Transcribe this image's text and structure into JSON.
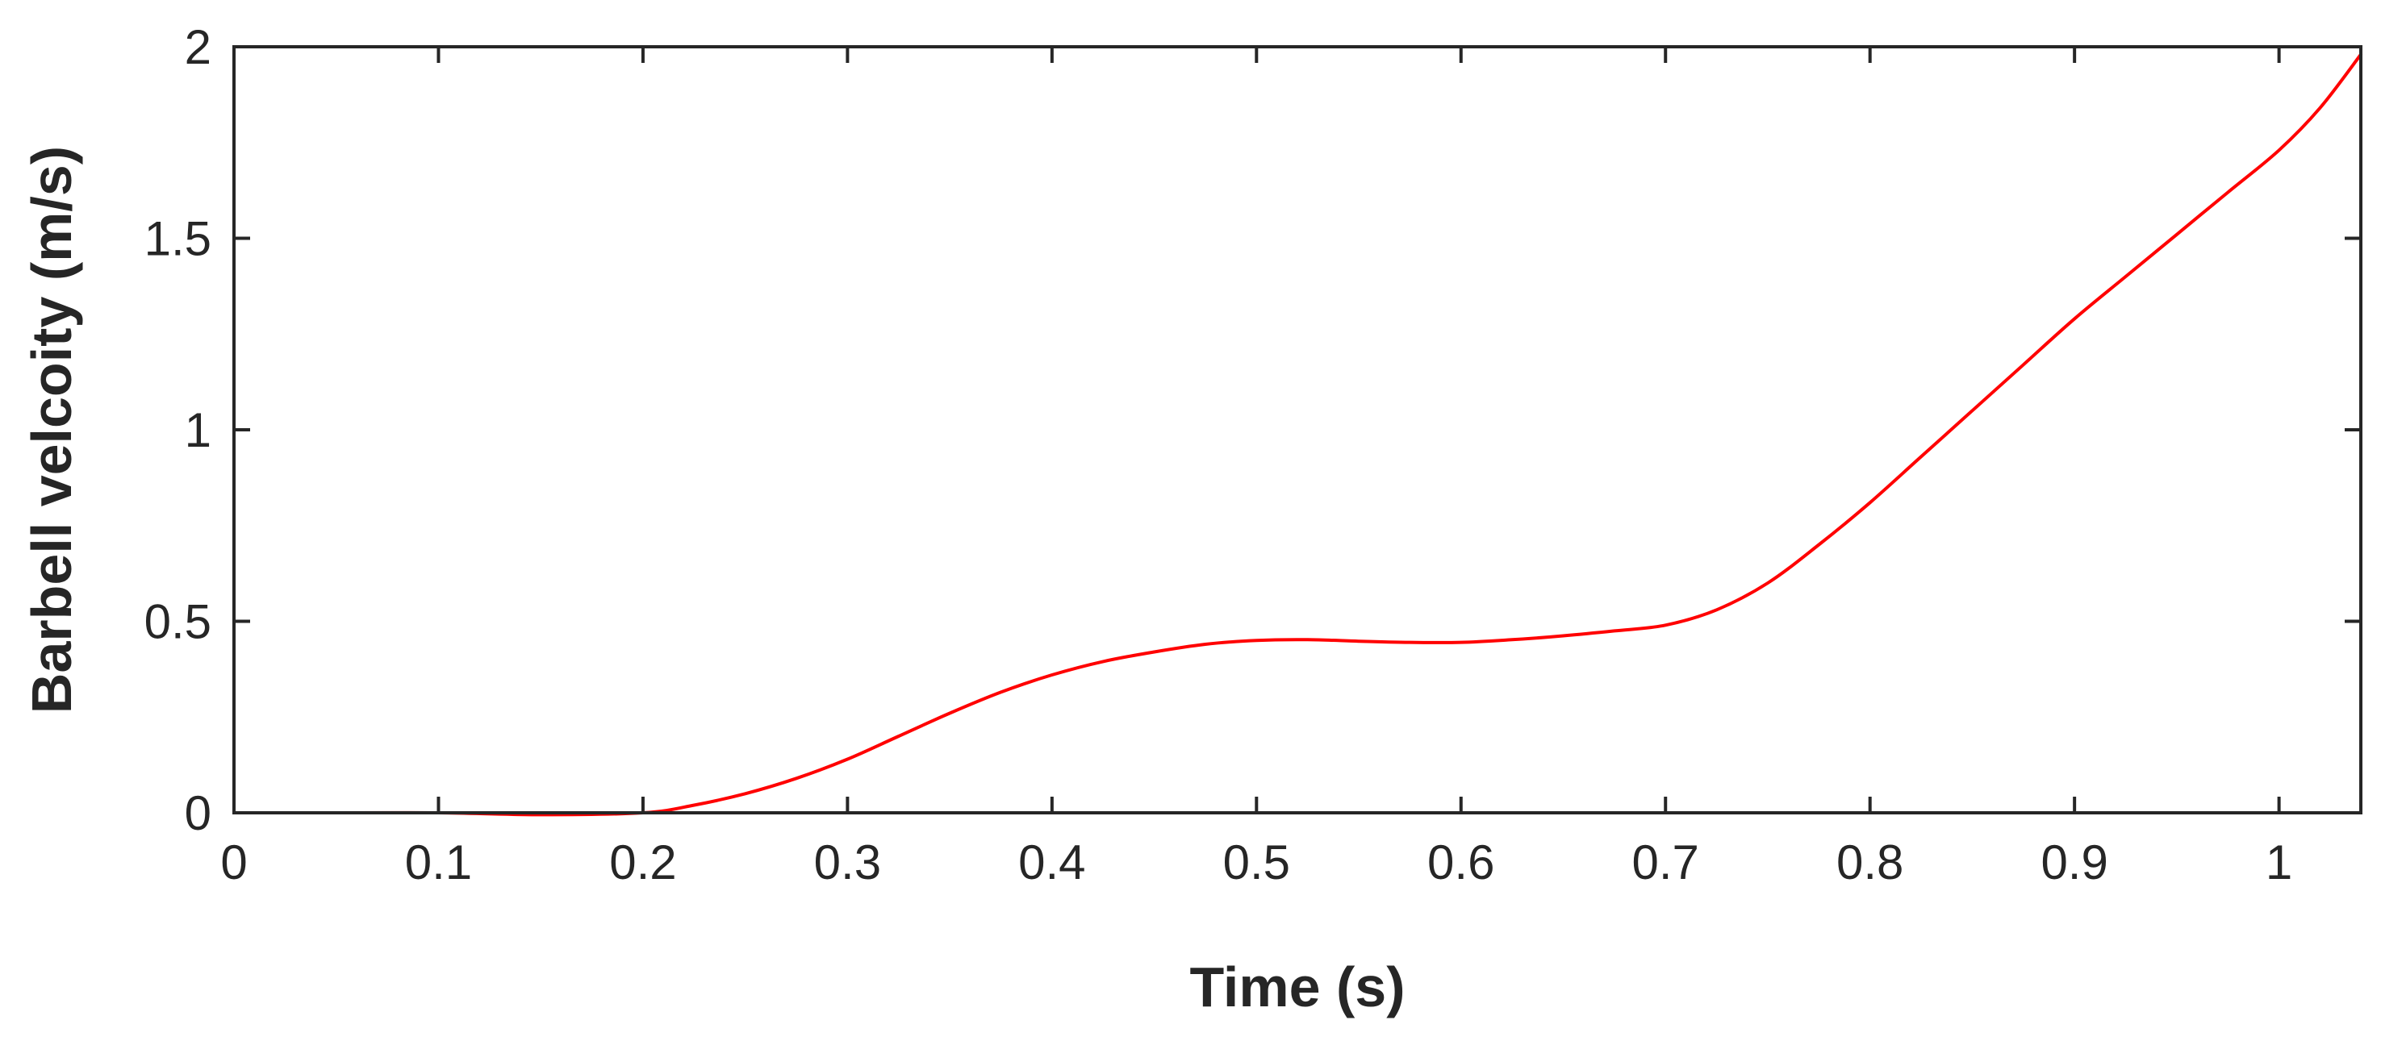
{
  "chart_data": {
    "type": "line",
    "title": "",
    "xlabel": "Time (s)",
    "ylabel": "Barbell velcoity (m/s)",
    "xlim": [
      0,
      1.04
    ],
    "ylim": [
      0,
      2
    ],
    "grid": false,
    "xticks": [
      0,
      0.1,
      0.2,
      0.3,
      0.4,
      0.5,
      0.6,
      0.7,
      0.8,
      0.9,
      1
    ],
    "xtick_labels": [
      "0",
      "0.1",
      "0.2",
      "0.3",
      "0.4",
      "0.5",
      "0.6",
      "0.7",
      "0.8",
      "0.9",
      "1"
    ],
    "yticks": [
      0,
      0.5,
      1,
      1.5,
      2
    ],
    "ytick_labels": [
      "0",
      "0.5",
      "1",
      "1.5",
      "2"
    ],
    "colors": {
      "series": "#ff0000",
      "axes": "#262626"
    },
    "series": [
      {
        "x": [
          0.01,
          0.05,
          0.1,
          0.15,
          0.2,
          0.225,
          0.25,
          0.275,
          0.3,
          0.325,
          0.35,
          0.375,
          0.4,
          0.425,
          0.45,
          0.475,
          0.5,
          0.525,
          0.55,
          0.575,
          0.6,
          0.625,
          0.65,
          0.675,
          0.7,
          0.725,
          0.75,
          0.775,
          0.8,
          0.825,
          0.85,
          0.875,
          0.9,
          0.925,
          0.95,
          0.975,
          1.0,
          1.02,
          1.04
        ],
        "y": [
          0.0,
          0.0,
          0.0,
          -0.005,
          0.0,
          0.02,
          0.05,
          0.09,
          0.14,
          0.2,
          0.26,
          0.315,
          0.36,
          0.395,
          0.42,
          0.44,
          0.45,
          0.452,
          0.448,
          0.445,
          0.445,
          0.452,
          0.462,
          0.475,
          0.49,
          0.53,
          0.6,
          0.7,
          0.81,
          0.93,
          1.05,
          1.17,
          1.29,
          1.4,
          1.51,
          1.62,
          1.73,
          1.84,
          1.98
        ]
      }
    ]
  }
}
